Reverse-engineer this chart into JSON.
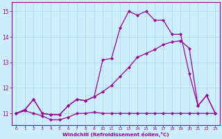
{
  "xlabel": "Windchill (Refroidissement éolien,°C)",
  "bg_color": "#cceeff",
  "grid_color": "#aadddd",
  "line_color": "#990099",
  "xlim": [
    -0.5,
    23.5
  ],
  "ylim": [
    10.55,
    15.35
  ],
  "xticks": [
    0,
    1,
    2,
    3,
    4,
    5,
    6,
    7,
    8,
    9,
    10,
    11,
    12,
    13,
    14,
    15,
    16,
    17,
    18,
    19,
    20,
    21,
    22,
    23
  ],
  "yticks": [
    11,
    12,
    13,
    14,
    15
  ],
  "series1_x": [
    0,
    1,
    2,
    3,
    4,
    5,
    6,
    7,
    8,
    9,
    10,
    11,
    12,
    13,
    14,
    15,
    16,
    17,
    18,
    19,
    20,
    21,
    22,
    23
  ],
  "series1_y": [
    11.0,
    11.1,
    11.0,
    10.9,
    10.75,
    10.75,
    10.85,
    11.0,
    11.0,
    11.05,
    11.0,
    11.0,
    11.0,
    11.0,
    11.0,
    11.0,
    11.0,
    11.0,
    11.0,
    11.0,
    11.0,
    11.0,
    11.0,
    11.0
  ],
  "series2_x": [
    0,
    1,
    2,
    3,
    4,
    5,
    6,
    7,
    8,
    9,
    10,
    11,
    12,
    13,
    14,
    15,
    16,
    17,
    18,
    19,
    20,
    21,
    22,
    23
  ],
  "series2_y": [
    11.0,
    11.15,
    11.55,
    11.0,
    10.95,
    10.95,
    11.3,
    11.55,
    11.5,
    11.65,
    11.85,
    12.1,
    12.45,
    12.8,
    13.2,
    13.35,
    13.5,
    13.7,
    13.8,
    13.85,
    13.55,
    11.3,
    11.7,
    11.0
  ],
  "series3_x": [
    0,
    1,
    2,
    3,
    4,
    5,
    6,
    7,
    8,
    9,
    10,
    11,
    12,
    13,
    14,
    15,
    16,
    17,
    18,
    19,
    20,
    21,
    22,
    23
  ],
  "series3_y": [
    11.0,
    11.15,
    11.55,
    11.0,
    10.95,
    10.95,
    11.3,
    11.55,
    11.5,
    11.65,
    13.1,
    13.15,
    14.35,
    15.0,
    14.85,
    15.0,
    14.65,
    14.65,
    14.1,
    14.1,
    12.55,
    11.3,
    11.7,
    11.0
  ]
}
